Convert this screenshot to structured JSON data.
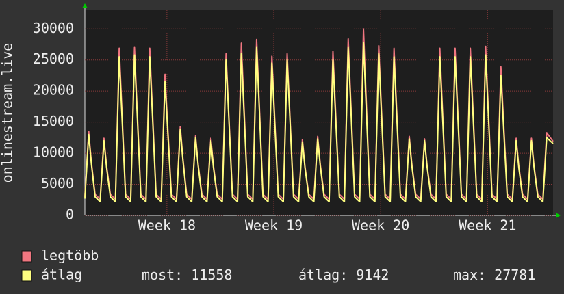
{
  "chart_data": {
    "type": "line",
    "y_label": "onlinestream.live",
    "x": [
      0,
      6,
      10,
      16,
      24,
      30,
      34,
      40,
      48,
      54,
      58,
      64,
      72,
      78,
      82,
      88,
      96,
      102,
      106,
      112,
      120,
      126,
      130,
      136,
      144,
      150,
      154,
      160,
      168,
      174,
      178,
      184,
      192,
      198,
      202,
      208,
      216,
      222,
      226,
      232,
      240,
      246,
      250,
      256,
      264,
      270,
      274,
      280,
      288,
      294,
      298,
      304,
      312,
      318,
      322,
      328,
      336,
      342,
      346,
      352,
      360,
      366,
      370,
      376,
      384,
      390,
      394,
      400,
      408,
      414,
      418,
      424,
      432,
      438,
      442,
      448,
      456,
      462,
      466,
      472,
      480,
      486,
      490,
      496,
      504,
      510,
      514,
      520,
      528,
      534,
      538,
      544,
      552,
      558,
      562,
      568,
      576,
      582,
      586,
      592,
      600,
      606,
      610,
      616,
      624,
      630,
      634,
      640,
      648,
      654,
      658,
      664,
      672,
      678,
      682,
      688,
      696,
      702,
      706,
      712,
      720,
      726,
      736
    ],
    "series": [
      {
        "name": "legtöbb",
        "color": "#f07680",
        "values": [
          3000,
          13500,
          8800,
          3400,
          2600,
          12400,
          8100,
          3400,
          2600,
          26900,
          17500,
          3400,
          2600,
          27000,
          17600,
          3400,
          2600,
          26900,
          17500,
          3400,
          2600,
          22700,
          14800,
          3400,
          2600,
          14300,
          9300,
          3400,
          2600,
          12800,
          8300,
          3400,
          2600,
          12400,
          8100,
          3400,
          2600,
          26000,
          16900,
          3400,
          2600,
          27700,
          18000,
          3400,
          2600,
          28300,
          18400,
          3400,
          2600,
          25600,
          16600,
          3400,
          2600,
          26000,
          16900,
          3400,
          2600,
          12200,
          7900,
          3400,
          2600,
          12700,
          8300,
          3400,
          2600,
          26400,
          17200,
          3400,
          2600,
          28400,
          18500,
          3400,
          2600,
          30000,
          19500,
          3400,
          2600,
          27300,
          17700,
          3400,
          2600,
          26900,
          17500,
          3400,
          2600,
          12700,
          8300,
          3400,
          2600,
          12300,
          8000,
          3400,
          2600,
          26900,
          17500,
          3400,
          2600,
          26900,
          17500,
          3400,
          2600,
          26900,
          17500,
          3400,
          2600,
          27200,
          17700,
          3400,
          2600,
          23900,
          15500,
          3400,
          2600,
          12400,
          8100,
          3400,
          2600,
          12400,
          8100,
          3400,
          2600,
          13300,
          11900
        ]
      },
      {
        "name": "átlag",
        "color": "#ffff80",
        "values": [
          2700,
          13000,
          8500,
          3000,
          2200,
          12000,
          7800,
          3000,
          2200,
          25500,
          16600,
          3000,
          2200,
          25800,
          16800,
          3000,
          2200,
          25500,
          16600,
          3000,
          2200,
          21500,
          14000,
          3000,
          2200,
          13800,
          9000,
          3000,
          2200,
          12500,
          8100,
          3000,
          2200,
          12000,
          7800,
          3000,
          2200,
          25000,
          16300,
          3000,
          2200,
          26000,
          16900,
          3000,
          2200,
          27000,
          17600,
          3000,
          2200,
          24500,
          15900,
          3000,
          2200,
          25000,
          16300,
          3000,
          2200,
          11800,
          7700,
          3000,
          2200,
          12300,
          8000,
          3000,
          2200,
          25000,
          16300,
          3000,
          2200,
          27000,
          17600,
          3000,
          2200,
          27781,
          18100,
          3000,
          2200,
          26000,
          16900,
          3000,
          2200,
          25500,
          16600,
          3000,
          2200,
          12300,
          8000,
          3000,
          2200,
          12000,
          7800,
          3000,
          2200,
          25500,
          16600,
          3000,
          2200,
          25500,
          16600,
          3000,
          2200,
          25500,
          16600,
          3000,
          2200,
          25800,
          16800,
          3000,
          2200,
          22500,
          14600,
          3000,
          2200,
          12000,
          7800,
          3000,
          2200,
          12000,
          7800,
          3000,
          2200,
          12500,
          11558
        ]
      }
    ],
    "xlim": [
      0,
      736
    ],
    "xticks": [
      {
        "value": 129,
        "label": "Week 18"
      },
      {
        "value": 297,
        "label": "Week 19"
      },
      {
        "value": 465,
        "label": "Week 20"
      },
      {
        "value": 633,
        "label": "Week 21"
      }
    ],
    "ylim": [
      0,
      33000
    ],
    "yticks": [
      0,
      5000,
      10000,
      15000,
      20000,
      25000,
      30000
    ],
    "grid": true,
    "stats": [
      {
        "label": "most:",
        "value": 11558
      },
      {
        "label": "átlag:",
        "value": 9142
      },
      {
        "label": "max:",
        "value": 27781
      }
    ]
  }
}
